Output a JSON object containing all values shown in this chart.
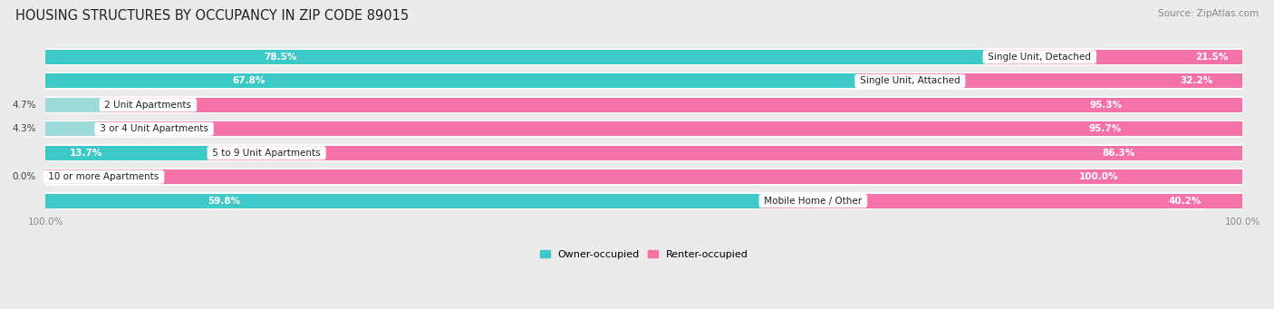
{
  "title": "HOUSING STRUCTURES BY OCCUPANCY IN ZIP CODE 89015",
  "source": "Source: ZipAtlas.com",
  "categories": [
    "Single Unit, Detached",
    "Single Unit, Attached",
    "2 Unit Apartments",
    "3 or 4 Unit Apartments",
    "5 to 9 Unit Apartments",
    "10 or more Apartments",
    "Mobile Home / Other"
  ],
  "owner_pct": [
    78.5,
    67.8,
    4.7,
    4.3,
    13.7,
    0.0,
    59.8
  ],
  "renter_pct": [
    21.5,
    32.2,
    95.3,
    95.7,
    86.3,
    100.0,
    40.2
  ],
  "owner_color": "#3EC8C8",
  "renter_color": "#F472A8",
  "owner_color_light": "#9DDADA",
  "background_color": "#EBEBEB",
  "bar_bg_color": "#FFFFFF",
  "title_fontsize": 10.5,
  "source_fontsize": 7.5,
  "label_fontsize": 7.5,
  "pct_fontsize": 7.5,
  "legend_fontsize": 8,
  "axis_label_fontsize": 7.5
}
